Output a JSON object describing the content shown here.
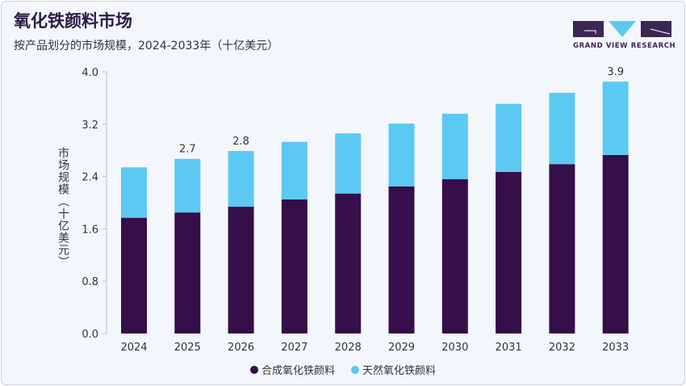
{
  "header": {
    "title": "氧化铁颜料市场",
    "subtitle": "按产品划分的市场规模，2024-2033年（十亿美元）",
    "logo_text": "GRAND VIEW RESEARCH"
  },
  "chart_data": {
    "type": "bar",
    "stacked": true,
    "title": "",
    "xlabel": "",
    "ylabel": "市场规模（十亿美元）",
    "ylim": [
      0,
      4.0
    ],
    "yticks": [
      "0.0",
      "0.8",
      "1.6",
      "2.4",
      "3.2",
      "4.0"
    ],
    "grid": false,
    "legend_position": "bottom",
    "categories": [
      "2024",
      "2025",
      "2026",
      "2027",
      "2028",
      "2029",
      "2030",
      "2031",
      "2032",
      "2033"
    ],
    "series": [
      {
        "name": "合成氧化铁颜料",
        "color": "#350e4a",
        "values": [
          1.77,
          1.85,
          1.94,
          2.05,
          2.14,
          2.25,
          2.36,
          2.47,
          2.59,
          2.73
        ]
      },
      {
        "name": "天然氧化铁颜料",
        "color": "#5bc9f2",
        "values": [
          0.77,
          0.82,
          0.85,
          0.88,
          0.92,
          0.96,
          1.0,
          1.04,
          1.09,
          1.12
        ]
      }
    ],
    "data_labels": {
      "2025": "2.7",
      "2026": "2.8",
      "2033": "3.9"
    }
  }
}
